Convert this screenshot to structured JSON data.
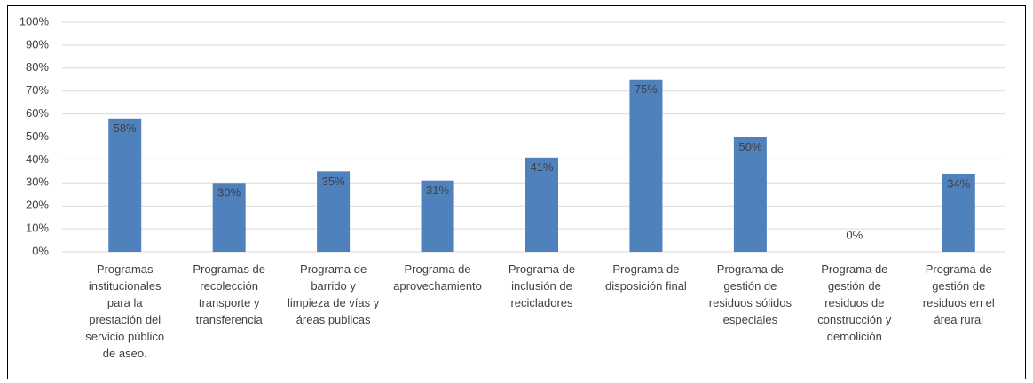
{
  "chart_data": {
    "type": "bar",
    "categories": [
      "Programas\ninstitucionales\npara la\nprestación del\nservicio público\nde aseo.",
      "Programas de\nrecolección\ntransporte y\ntransferencia",
      "Programa de\nbarrido y\nlimpieza de vías y\náreas publicas",
      "Programa de\naprovechamiento",
      "Programa de\ninclusión de\nrecicladores",
      "Programa de\ndisposición final",
      "Programa de\ngestión de\nresiduos sólidos\nespeciales",
      "Programa de\ngestión de\nresiduos de\nconstrucción y\ndemolición",
      "Programa de\ngestión de\nresiduos en el\nárea rural"
    ],
    "values": [
      58,
      30,
      35,
      31,
      41,
      75,
      50,
      0,
      34
    ],
    "value_labels": [
      "58%",
      "30%",
      "35%",
      "31%",
      "41%",
      "75%",
      "50%",
      "0%",
      "34%"
    ],
    "color": "#4f81bd",
    "ylim": [
      0,
      100
    ],
    "yticks": [
      {
        "value": 0,
        "label": "0%"
      },
      {
        "value": 10,
        "label": "10%"
      },
      {
        "value": 20,
        "label": "20%"
      },
      {
        "value": 30,
        "label": "30%"
      },
      {
        "value": 40,
        "label": "40%"
      },
      {
        "value": 50,
        "label": "50%"
      },
      {
        "value": 60,
        "label": "60%"
      },
      {
        "value": 70,
        "label": "70%"
      },
      {
        "value": 80,
        "label": "80%"
      },
      {
        "value": 90,
        "label": "90%"
      },
      {
        "value": 100,
        "label": "100%"
      }
    ],
    "grid": true
  }
}
